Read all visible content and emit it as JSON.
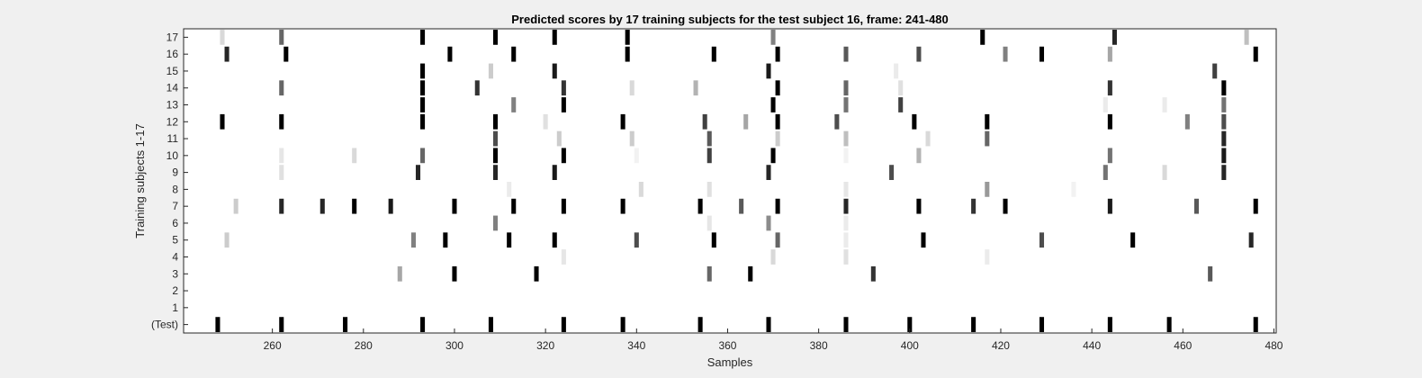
{
  "chart_data": {
    "type": "heatmap",
    "title": "Predicted scores by 17 training subjects for the test subject 16, frame: 241-480",
    "xlabel": "Samples",
    "ylabel": "Training subjects 1-17",
    "xlim": [
      241,
      480
    ],
    "x_ticks": [
      260,
      280,
      300,
      320,
      340,
      360,
      380,
      400,
      420,
      440,
      460,
      480
    ],
    "y_rows": [
      "(Test)",
      "1",
      "2",
      "3",
      "4",
      "5",
      "6",
      "7",
      "8",
      "9",
      "10",
      "11",
      "12",
      "13",
      "14",
      "15",
      "16",
      "17"
    ],
    "color_scale": "intensity 0 = white, 1 = black",
    "cells": [
      {
        "row": "(Test)",
        "points": [
          [
            248,
            1
          ],
          [
            262,
            1
          ],
          [
            276,
            1
          ],
          [
            293,
            1
          ],
          [
            308,
            1
          ],
          [
            324,
            1
          ],
          [
            337,
            1
          ],
          [
            354,
            1
          ],
          [
            369,
            1
          ],
          [
            386,
            1
          ],
          [
            400,
            1
          ],
          [
            414,
            1
          ],
          [
            429,
            1
          ],
          [
            444,
            1
          ],
          [
            457,
            1
          ],
          [
            476,
            1
          ]
        ]
      },
      {
        "row": "1",
        "points": []
      },
      {
        "row": "2",
        "points": []
      },
      {
        "row": "3",
        "points": [
          [
            288,
            0.35
          ],
          [
            300,
            1
          ],
          [
            318,
            1
          ],
          [
            356,
            0.6
          ],
          [
            365,
            1
          ],
          [
            392,
            0.8
          ],
          [
            466,
            0.65
          ]
        ]
      },
      {
        "row": "4",
        "points": [
          [
            324,
            0.1
          ],
          [
            370,
            0.15
          ],
          [
            386,
            0.12
          ],
          [
            417,
            0.08
          ]
        ]
      },
      {
        "row": "5",
        "points": [
          [
            250,
            0.2
          ],
          [
            291,
            0.5
          ],
          [
            298,
            1
          ],
          [
            312,
            1
          ],
          [
            322,
            1
          ],
          [
            340,
            0.7
          ],
          [
            357,
            1
          ],
          [
            371,
            0.6
          ],
          [
            386,
            0.08
          ],
          [
            403,
            1
          ],
          [
            429,
            0.7
          ],
          [
            449,
            1
          ],
          [
            475,
            0.85
          ]
        ]
      },
      {
        "row": "6",
        "points": [
          [
            309,
            0.5
          ],
          [
            356,
            0.1
          ],
          [
            369,
            0.45
          ],
          [
            386,
            0.08
          ]
        ]
      },
      {
        "row": "7",
        "points": [
          [
            252,
            0.2
          ],
          [
            262,
            0.85
          ],
          [
            271,
            0.85
          ],
          [
            278,
            1
          ],
          [
            286,
            0.9
          ],
          [
            300,
            1
          ],
          [
            313,
            1
          ],
          [
            324,
            1
          ],
          [
            337,
            1
          ],
          [
            354,
            1
          ],
          [
            363,
            0.65
          ],
          [
            371,
            1
          ],
          [
            386,
            0.85
          ],
          [
            402,
            1
          ],
          [
            414,
            0.8
          ],
          [
            421,
            1
          ],
          [
            444,
            0.9
          ],
          [
            463,
            0.65
          ],
          [
            476,
            1
          ]
        ]
      },
      {
        "row": "8",
        "points": [
          [
            312,
            0.08
          ],
          [
            341,
            0.15
          ],
          [
            356,
            0.12
          ],
          [
            386,
            0.1
          ],
          [
            417,
            0.4
          ],
          [
            436,
            0.05
          ]
        ]
      },
      {
        "row": "9",
        "points": [
          [
            262,
            0.12
          ],
          [
            292,
            0.85
          ],
          [
            309,
            0.85
          ],
          [
            322,
            0.9
          ],
          [
            369,
            0.85
          ],
          [
            396,
            0.7
          ],
          [
            443,
            0.55
          ],
          [
            456,
            0.15
          ],
          [
            469,
            0.85
          ]
        ]
      },
      {
        "row": "10",
        "points": [
          [
            262,
            0.1
          ],
          [
            278,
            0.15
          ],
          [
            293,
            0.6
          ],
          [
            309,
            1
          ],
          [
            324,
            1
          ],
          [
            340,
            0.05
          ],
          [
            356,
            0.75
          ],
          [
            370,
            1
          ],
          [
            386,
            0.05
          ],
          [
            402,
            0.3
          ],
          [
            444,
            0.55
          ],
          [
            469,
            0.9
          ]
        ]
      },
      {
        "row": "11",
        "points": [
          [
            309,
            0.7
          ],
          [
            323,
            0.2
          ],
          [
            339,
            0.2
          ],
          [
            356,
            0.65
          ],
          [
            371,
            0.2
          ],
          [
            386,
            0.25
          ],
          [
            404,
            0.15
          ],
          [
            417,
            0.6
          ],
          [
            469,
            0.85
          ]
        ]
      },
      {
        "row": "12",
        "points": [
          [
            249,
            1
          ],
          [
            262,
            1
          ],
          [
            293,
            1
          ],
          [
            309,
            1
          ],
          [
            320,
            0.12
          ],
          [
            337,
            1
          ],
          [
            355,
            0.75
          ],
          [
            364,
            0.35
          ],
          [
            371,
            1
          ],
          [
            384,
            0.7
          ],
          [
            401,
            1
          ],
          [
            417,
            1
          ],
          [
            444,
            1
          ],
          [
            461,
            0.5
          ],
          [
            469,
            0.7
          ]
        ]
      },
      {
        "row": "13",
        "points": [
          [
            293,
            1
          ],
          [
            313,
            0.5
          ],
          [
            324,
            1
          ],
          [
            370,
            1
          ],
          [
            386,
            0.55
          ],
          [
            398,
            0.75
          ],
          [
            443,
            0.08
          ],
          [
            456,
            0.08
          ],
          [
            469,
            0.55
          ]
        ]
      },
      {
        "row": "14",
        "points": [
          [
            262,
            0.6
          ],
          [
            293,
            1
          ],
          [
            305,
            0.8
          ],
          [
            324,
            0.8
          ],
          [
            339,
            0.15
          ],
          [
            353,
            0.3
          ],
          [
            371,
            1
          ],
          [
            386,
            0.6
          ],
          [
            398,
            0.12
          ],
          [
            444,
            0.8
          ],
          [
            469,
            1
          ]
        ]
      },
      {
        "row": "15",
        "points": [
          [
            293,
            1
          ],
          [
            308,
            0.2
          ],
          [
            322,
            0.9
          ],
          [
            369,
            0.9
          ],
          [
            397,
            0.08
          ],
          [
            467,
            0.75
          ]
        ]
      },
      {
        "row": "16",
        "points": [
          [
            250,
            0.85
          ],
          [
            263,
            1
          ],
          [
            299,
            1
          ],
          [
            313,
            1
          ],
          [
            338,
            1
          ],
          [
            357,
            1
          ],
          [
            371,
            1
          ],
          [
            386,
            0.65
          ],
          [
            402,
            0.7
          ],
          [
            421,
            0.5
          ],
          [
            429,
            1
          ],
          [
            444,
            0.35
          ],
          [
            476,
            1
          ]
        ]
      },
      {
        "row": "17",
        "points": [
          [
            249,
            0.15
          ],
          [
            262,
            0.6
          ],
          [
            293,
            1
          ],
          [
            309,
            1
          ],
          [
            322,
            1
          ],
          [
            338,
            1
          ],
          [
            370,
            0.5
          ],
          [
            416,
            1
          ],
          [
            445,
            0.85
          ],
          [
            474,
            0.25
          ]
        ]
      }
    ],
    "grid": false,
    "legend": "none"
  }
}
